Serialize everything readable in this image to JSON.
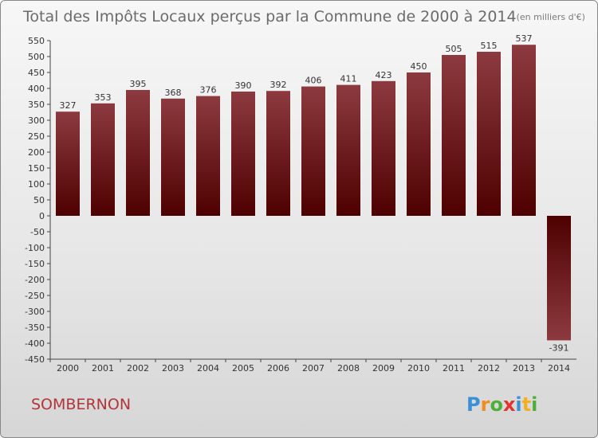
{
  "chart_data": {
    "type": "bar",
    "title": "Total des Impôts Locaux perçus par la Commune de 2000 à 2014",
    "subtitle": "(en milliers d'€)",
    "categories": [
      "2000",
      "2001",
      "2002",
      "2003",
      "2004",
      "2005",
      "2006",
      "2007",
      "2008",
      "2009",
      "2010",
      "2011",
      "2012",
      "2013",
      "2014"
    ],
    "values": [
      327,
      353,
      395,
      368,
      376,
      390,
      392,
      406,
      411,
      423,
      450,
      505,
      515,
      537,
      -391
    ],
    "value_labels": [
      "327",
      "353",
      "395",
      "368",
      "376",
      "390",
      "392",
      "406",
      "411",
      "423",
      "450",
      "505",
      "515",
      "537",
      "-391"
    ],
    "ylim": [
      -450,
      550
    ],
    "yticks": [
      "550",
      "500",
      "450",
      "400",
      "350",
      "300",
      "250",
      "200",
      "150",
      "100",
      "50",
      "0",
      "-50",
      "-100",
      "-150",
      "-200",
      "-250",
      "-300",
      "-350",
      "-400",
      "-450"
    ],
    "xlabel": "",
    "ylabel": "",
    "grid": false,
    "colors": {
      "bar_top": "#8c3a3f",
      "bar_bottom": "#4e0000"
    }
  },
  "commune": "SOMBERNON",
  "logo": {
    "text": "Proxiti",
    "letters": [
      "P",
      "r",
      "o",
      "x",
      "i",
      "t",
      "i"
    ],
    "colors": [
      "#3a8fd6",
      "#f28c1c",
      "#4caf3a",
      "#e0342c",
      "#3a8fd6",
      "#f2b01c",
      "#4caf3a"
    ]
  }
}
